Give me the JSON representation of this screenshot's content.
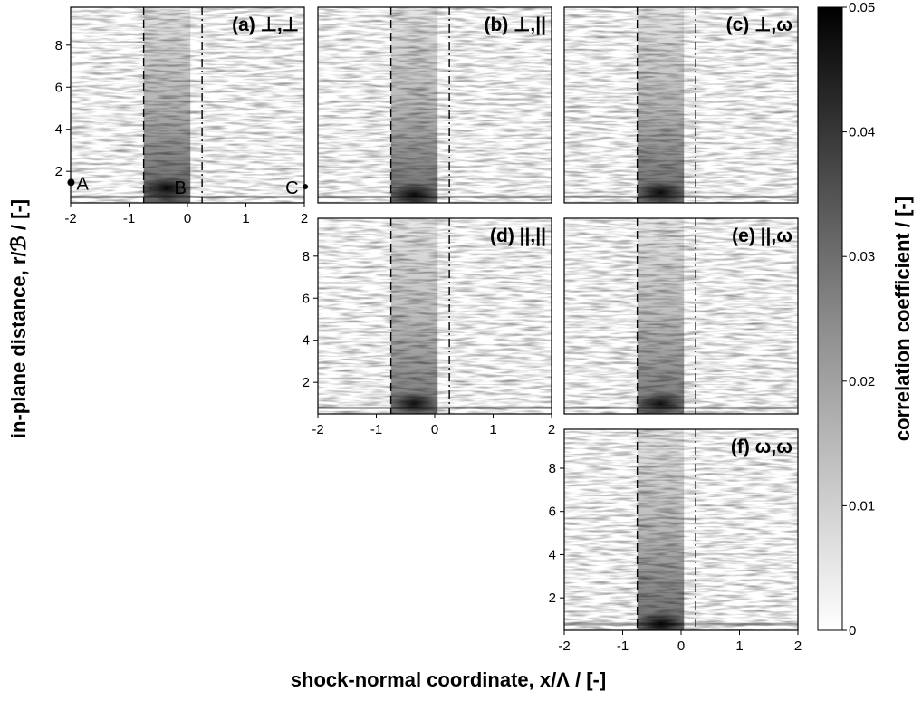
{
  "figure": {
    "xlabel": "shock-normal coordinate, x/Λ / [-]",
    "ylabel": "in-plane distance, r/ℬ / [-]",
    "colorbar_label": "correlation coefficient / [-]"
  },
  "colorbar": {
    "min": 0,
    "max": 0.05,
    "ticks": [
      "0",
      "0.01",
      "0.02",
      "0.03",
      "0.04",
      "0.05"
    ],
    "colormap": "gray_r"
  },
  "point_markers": [
    "A",
    "B",
    "C"
  ],
  "chart_data": [
    {
      "type": "heatmap",
      "panel": "a",
      "label": "(a) ⊥,⊥",
      "xlim": [
        -2,
        2
      ],
      "ylim": [
        0.5,
        9.8
      ],
      "xticks": [
        "-2",
        "-1",
        "0",
        "1",
        "2"
      ],
      "yticks": [
        "2",
        "4",
        "6",
        "8"
      ],
      "dashed_lines_x": [
        -0.75,
        0.25
      ],
      "peak": {
        "x": -0.35,
        "y": 1.2,
        "value": 0.045
      },
      "markers": [
        {
          "label": "A",
          "x": -1.9,
          "y": 1.3
        },
        {
          "label": "B",
          "x": -0.1,
          "y": 1.1
        },
        {
          "label": "C",
          "x": 1.8,
          "y": 1.1
        }
      ]
    },
    {
      "type": "heatmap",
      "panel": "b",
      "label": "(b) ⊥,||",
      "xlim": [
        -2,
        2
      ],
      "ylim": [
        0.5,
        9.8
      ],
      "dashed_lines_x": [
        -0.75,
        0.25
      ],
      "peak": {
        "x": -0.35,
        "y": 0.9,
        "value": 0.04
      }
    },
    {
      "type": "heatmap",
      "panel": "c",
      "label": "(c) ⊥,ω",
      "xlim": [
        -2,
        2
      ],
      "ylim": [
        0.5,
        9.8
      ],
      "dashed_lines_x": [
        -0.75,
        0.25
      ],
      "peak": {
        "x": -0.35,
        "y": 1.0,
        "value": 0.04
      }
    },
    {
      "type": "heatmap",
      "panel": "d",
      "label": "(d) ||,||",
      "xlim": [
        -2,
        2
      ],
      "ylim": [
        0.5,
        9.8
      ],
      "xticks": [
        "-2",
        "-1",
        "0",
        "1",
        "2"
      ],
      "yticks": [
        "2",
        "4",
        "6",
        "8"
      ],
      "dashed_lines_x": [
        -0.75,
        0.25
      ],
      "peak": {
        "x": -0.35,
        "y": 1.0,
        "value": 0.035
      }
    },
    {
      "type": "heatmap",
      "panel": "e",
      "label": "(e) ||,ω",
      "xlim": [
        -2,
        2
      ],
      "ylim": [
        0.5,
        9.8
      ],
      "dashed_lines_x": [
        -0.75,
        0.25
      ],
      "peak": {
        "x": -0.35,
        "y": 1.0,
        "value": 0.035
      }
    },
    {
      "type": "heatmap",
      "panel": "f",
      "label": "(f) ω,ω",
      "xlim": [
        -2,
        2
      ],
      "ylim": [
        0.5,
        9.8
      ],
      "xticks": [
        "-2",
        "-1",
        "0",
        "1",
        "2"
      ],
      "yticks": [
        "2",
        "4",
        "6",
        "8"
      ],
      "dashed_lines_x": [
        -0.75,
        0.25
      ],
      "peak": {
        "x": -0.35,
        "y": 0.8,
        "value": 0.04
      }
    }
  ]
}
